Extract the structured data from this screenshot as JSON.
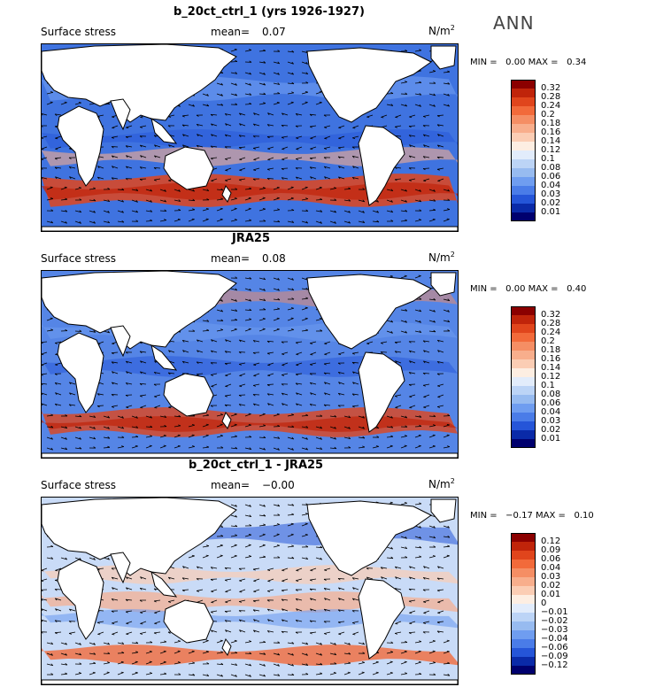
{
  "season": "ANN",
  "field_label": "Surface stress",
  "mean_label": "mean=",
  "units": "N/m",
  "units_sup": "2",
  "panels": [
    {
      "title": "b_20ct_ctrl_1 (yrs 1926-1927)",
      "mean": "0.07",
      "min_label": "MIN =",
      "min": "0.00",
      "max_label": "MAX =",
      "max": "0.34",
      "legend": [
        "0.32",
        "0.28",
        "0.24",
        "0.2",
        "0.18",
        "0.16",
        "0.14",
        "0.12",
        "0.1",
        "0.08",
        "0.06",
        "0.04",
        "0.03",
        "0.02",
        "0.01"
      ],
      "colors": [
        "#8b0000",
        "#c0240a",
        "#e0451c",
        "#f26a3a",
        "#f58e64",
        "#f8ae8c",
        "#fbcdb4",
        "#fdeee2",
        "#e2ecfb",
        "#bcd4f6",
        "#97bbf0",
        "#6f9df0",
        "#4a7ce8",
        "#2555d8",
        "#0a2aa8",
        "#00006e"
      ],
      "base": "#3f73e0"
    },
    {
      "title": "JRA25",
      "mean": "0.08",
      "min_label": "MIN =",
      "min": "0.00",
      "max_label": "MAX =",
      "max": "0.40",
      "legend": [
        "0.32",
        "0.28",
        "0.24",
        "0.2",
        "0.18",
        "0.16",
        "0.14",
        "0.12",
        "0.1",
        "0.08",
        "0.06",
        "0.04",
        "0.03",
        "0.02",
        "0.01"
      ],
      "colors": [
        "#8b0000",
        "#c0240a",
        "#e0451c",
        "#f26a3a",
        "#f58e64",
        "#f8ae8c",
        "#fbcdb4",
        "#fdeee2",
        "#e2ecfb",
        "#bcd4f6",
        "#97bbf0",
        "#6f9df0",
        "#4a7ce8",
        "#2555d8",
        "#0a2aa8",
        "#00006e"
      ],
      "base": "#5585e6"
    },
    {
      "title": "b_20ct_ctrl_1 - JRA25",
      "mean": "−0.00",
      "min_label": "MIN =",
      "min": "−0.17",
      "max_label": "MAX =",
      "max": "0.10",
      "legend": [
        "0.12",
        "0.09",
        "0.06",
        "0.04",
        "0.03",
        "0.02",
        "0.01",
        "0",
        "−0.01",
        "−0.02",
        "−0.03",
        "−0.04",
        "−0.06",
        "−0.09",
        "−0.12"
      ],
      "colors": [
        "#8b0000",
        "#c0240a",
        "#e0451c",
        "#f26a3a",
        "#f58e64",
        "#f8ae8c",
        "#fbcdb4",
        "#fdeee2",
        "#e2ecfb",
        "#bcd4f6",
        "#97bbf0",
        "#6f9df0",
        "#4a7ce8",
        "#2555d8",
        "#0a2aa8",
        "#00006e"
      ],
      "base": "#c9dbf7"
    }
  ]
}
